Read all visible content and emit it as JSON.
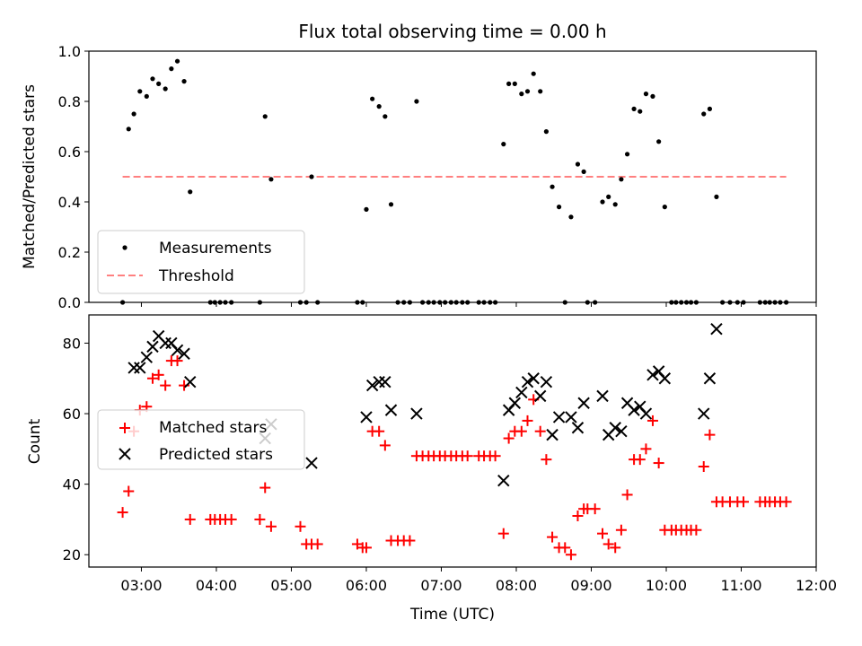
{
  "title": "Flux total observing time = 0.00 h",
  "xlabel": "Time (UTC)",
  "colors": {
    "matched": "#ff0000",
    "predicted": "#000000",
    "threshold": "#ff8080",
    "measurement": "#000000"
  },
  "chart_data": [
    {
      "type": "scatter",
      "ylabel": "Matched/Predicted stars",
      "xlim": [
        2.3,
        12.0
      ],
      "ylim": [
        0.0,
        1.0
      ],
      "yticks": [
        0.0,
        0.2,
        0.4,
        0.6,
        0.8,
        1.0
      ],
      "ytick_labels": [
        "0.0",
        "0.2",
        "0.4",
        "0.6",
        "0.8",
        "1.0"
      ],
      "legend_position": "lower-left",
      "threshold": {
        "name": "Threshold",
        "value": 0.5,
        "x_range": [
          2.75,
          11.6
        ]
      },
      "series": [
        {
          "name": "Measurements",
          "points": [
            [
              2.75,
              0.0
            ],
            [
              2.83,
              0.69
            ],
            [
              2.9,
              0.75
            ],
            [
              2.98,
              0.84
            ],
            [
              3.07,
              0.82
            ],
            [
              3.15,
              0.89
            ],
            [
              3.23,
              0.87
            ],
            [
              3.32,
              0.85
            ],
            [
              3.4,
              0.93
            ],
            [
              3.48,
              0.96
            ],
            [
              3.57,
              0.88
            ],
            [
              3.65,
              0.44
            ],
            [
              3.92,
              0.0
            ],
            [
              3.98,
              0.0
            ],
            [
              4.05,
              0.0
            ],
            [
              4.12,
              0.0
            ],
            [
              4.2,
              0.0
            ],
            [
              4.58,
              0.0
            ],
            [
              4.65,
              0.74
            ],
            [
              4.73,
              0.49
            ],
            [
              5.12,
              0.0
            ],
            [
              5.2,
              0.0
            ],
            [
              5.27,
              0.5
            ],
            [
              5.35,
              0.0
            ],
            [
              5.88,
              0.0
            ],
            [
              5.95,
              0.0
            ],
            [
              6.0,
              0.37
            ],
            [
              6.08,
              0.81
            ],
            [
              6.17,
              0.78
            ],
            [
              6.25,
              0.74
            ],
            [
              6.33,
              0.39
            ],
            [
              6.42,
              0.0
            ],
            [
              6.5,
              0.0
            ],
            [
              6.58,
              0.0
            ],
            [
              6.67,
              0.8
            ],
            [
              6.75,
              0.0
            ],
            [
              6.83,
              0.0
            ],
            [
              6.9,
              0.0
            ],
            [
              6.98,
              0.0
            ],
            [
              7.05,
              0.0
            ],
            [
              7.13,
              0.0
            ],
            [
              7.2,
              0.0
            ],
            [
              7.28,
              0.0
            ],
            [
              7.35,
              0.0
            ],
            [
              7.5,
              0.0
            ],
            [
              7.57,
              0.0
            ],
            [
              7.65,
              0.0
            ],
            [
              7.72,
              0.0
            ],
            [
              7.83,
              0.63
            ],
            [
              7.9,
              0.87
            ],
            [
              7.98,
              0.87
            ],
            [
              8.07,
              0.83
            ],
            [
              8.15,
              0.84
            ],
            [
              8.23,
              0.91
            ],
            [
              8.32,
              0.84
            ],
            [
              8.4,
              0.68
            ],
            [
              8.48,
              0.46
            ],
            [
              8.57,
              0.38
            ],
            [
              8.65,
              0.0
            ],
            [
              8.73,
              0.34
            ],
            [
              8.82,
              0.55
            ],
            [
              8.9,
              0.52
            ],
            [
              8.95,
              0.0
            ],
            [
              9.05,
              0.0
            ],
            [
              9.15,
              0.4
            ],
            [
              9.23,
              0.42
            ],
            [
              9.32,
              0.39
            ],
            [
              9.4,
              0.49
            ],
            [
              9.48,
              0.59
            ],
            [
              9.57,
              0.77
            ],
            [
              9.65,
              0.76
            ],
            [
              9.73,
              0.83
            ],
            [
              9.82,
              0.82
            ],
            [
              9.9,
              0.64
            ],
            [
              9.98,
              0.38
            ],
            [
              10.07,
              0.0
            ],
            [
              10.13,
              0.0
            ],
            [
              10.2,
              0.0
            ],
            [
              10.27,
              0.0
            ],
            [
              10.33,
              0.0
            ],
            [
              10.4,
              0.0
            ],
            [
              10.5,
              0.75
            ],
            [
              10.58,
              0.77
            ],
            [
              10.67,
              0.42
            ],
            [
              10.75,
              0.0
            ],
            [
              10.85,
              0.0
            ],
            [
              10.95,
              0.0
            ],
            [
              11.03,
              0.0
            ],
            [
              11.25,
              0.0
            ],
            [
              11.32,
              0.0
            ],
            [
              11.38,
              0.0
            ],
            [
              11.45,
              0.0
            ],
            [
              11.52,
              0.0
            ],
            [
              11.6,
              0.0
            ]
          ]
        }
      ]
    },
    {
      "type": "scatter",
      "ylabel": "Count",
      "xlim": [
        2.3,
        12.0
      ],
      "ylim": [
        16.5,
        88.0
      ],
      "yticks": [
        20,
        40,
        60,
        80
      ],
      "ytick_labels": [
        "20",
        "40",
        "60",
        "80"
      ],
      "xticks": [
        3,
        4,
        5,
        6,
        7,
        8,
        9,
        10,
        11,
        12
      ],
      "xtick_labels": [
        "03:00",
        "04:00",
        "05:00",
        "06:00",
        "07:00",
        "08:00",
        "09:00",
        "10:00",
        "11:00",
        "12:00"
      ],
      "legend_position": "center-left",
      "series": [
        {
          "name": "Matched stars",
          "marker": "plus",
          "points": [
            [
              2.75,
              32
            ],
            [
              2.83,
              38
            ],
            [
              2.9,
              55
            ],
            [
              2.98,
              61
            ],
            [
              3.07,
              62
            ],
            [
              3.15,
              70
            ],
            [
              3.23,
              71
            ],
            [
              3.32,
              68
            ],
            [
              3.4,
              75
            ],
            [
              3.48,
              75
            ],
            [
              3.57,
              68
            ],
            [
              3.65,
              30
            ],
            [
              3.92,
              30
            ],
            [
              3.98,
              30
            ],
            [
              4.05,
              30
            ],
            [
              4.12,
              30
            ],
            [
              4.2,
              30
            ],
            [
              4.58,
              30
            ],
            [
              4.65,
              39
            ],
            [
              4.73,
              28
            ],
            [
              5.12,
              28
            ],
            [
              5.2,
              23
            ],
            [
              5.27,
              23
            ],
            [
              5.35,
              23
            ],
            [
              5.88,
              23
            ],
            [
              5.95,
              22
            ],
            [
              6.0,
              22
            ],
            [
              6.08,
              55
            ],
            [
              6.17,
              55
            ],
            [
              6.25,
              51
            ],
            [
              6.33,
              24
            ],
            [
              6.42,
              24
            ],
            [
              6.5,
              24
            ],
            [
              6.58,
              24
            ],
            [
              6.67,
              48
            ],
            [
              6.75,
              48
            ],
            [
              6.83,
              48
            ],
            [
              6.9,
              48
            ],
            [
              6.98,
              48
            ],
            [
              7.05,
              48
            ],
            [
              7.13,
              48
            ],
            [
              7.2,
              48
            ],
            [
              7.28,
              48
            ],
            [
              7.35,
              48
            ],
            [
              7.5,
              48
            ],
            [
              7.57,
              48
            ],
            [
              7.65,
              48
            ],
            [
              7.72,
              48
            ],
            [
              7.83,
              26
            ],
            [
              7.9,
              53
            ],
            [
              7.98,
              55
            ],
            [
              8.07,
              55
            ],
            [
              8.15,
              58
            ],
            [
              8.23,
              64
            ],
            [
              8.32,
              55
            ],
            [
              8.4,
              47
            ],
            [
              8.48,
              25
            ],
            [
              8.57,
              22
            ],
            [
              8.65,
              22
            ],
            [
              8.73,
              20
            ],
            [
              8.82,
              31
            ],
            [
              8.9,
              33
            ],
            [
              8.95,
              33
            ],
            [
              9.05,
              33
            ],
            [
              9.15,
              26
            ],
            [
              9.23,
              23
            ],
            [
              9.32,
              22
            ],
            [
              9.4,
              27
            ],
            [
              9.48,
              37
            ],
            [
              9.57,
              47
            ],
            [
              9.65,
              47
            ],
            [
              9.73,
              50
            ],
            [
              9.82,
              58
            ],
            [
              9.9,
              46
            ],
            [
              9.98,
              27
            ],
            [
              10.07,
              27
            ],
            [
              10.13,
              27
            ],
            [
              10.2,
              27
            ],
            [
              10.27,
              27
            ],
            [
              10.33,
              27
            ],
            [
              10.4,
              27
            ],
            [
              10.5,
              45
            ],
            [
              10.58,
              54
            ],
            [
              10.67,
              35
            ],
            [
              10.75,
              35
            ],
            [
              10.85,
              35
            ],
            [
              10.95,
              35
            ],
            [
              11.03,
              35
            ],
            [
              11.25,
              35
            ],
            [
              11.32,
              35
            ],
            [
              11.38,
              35
            ],
            [
              11.45,
              35
            ],
            [
              11.52,
              35
            ],
            [
              11.6,
              35
            ]
          ]
        },
        {
          "name": "Predicted stars",
          "marker": "x",
          "points": [
            [
              2.9,
              73
            ],
            [
              2.98,
              73
            ],
            [
              3.07,
              76
            ],
            [
              3.15,
              79
            ],
            [
              3.23,
              82
            ],
            [
              3.32,
              80
            ],
            [
              3.4,
              80
            ],
            [
              3.48,
              78
            ],
            [
              3.57,
              77
            ],
            [
              3.65,
              69
            ],
            [
              4.65,
              53
            ],
            [
              4.73,
              57
            ],
            [
              5.27,
              46
            ],
            [
              6.0,
              59
            ],
            [
              6.08,
              68
            ],
            [
              6.17,
              69
            ],
            [
              6.25,
              69
            ],
            [
              6.33,
              61
            ],
            [
              6.67,
              60
            ],
            [
              7.83,
              41
            ],
            [
              7.9,
              61
            ],
            [
              7.98,
              63
            ],
            [
              8.07,
              66
            ],
            [
              8.15,
              69
            ],
            [
              8.23,
              70
            ],
            [
              8.32,
              65
            ],
            [
              8.4,
              69
            ],
            [
              8.48,
              54
            ],
            [
              8.57,
              59
            ],
            [
              8.73,
              59
            ],
            [
              8.82,
              56
            ],
            [
              8.9,
              63
            ],
            [
              9.15,
              65
            ],
            [
              9.23,
              54
            ],
            [
              9.32,
              56
            ],
            [
              9.4,
              55
            ],
            [
              9.48,
              63
            ],
            [
              9.57,
              61
            ],
            [
              9.65,
              62
            ],
            [
              9.73,
              60
            ],
            [
              9.82,
              71
            ],
            [
              9.9,
              72
            ],
            [
              9.98,
              70
            ],
            [
              10.5,
              60
            ],
            [
              10.58,
              70
            ],
            [
              10.67,
              84
            ]
          ]
        }
      ]
    }
  ]
}
